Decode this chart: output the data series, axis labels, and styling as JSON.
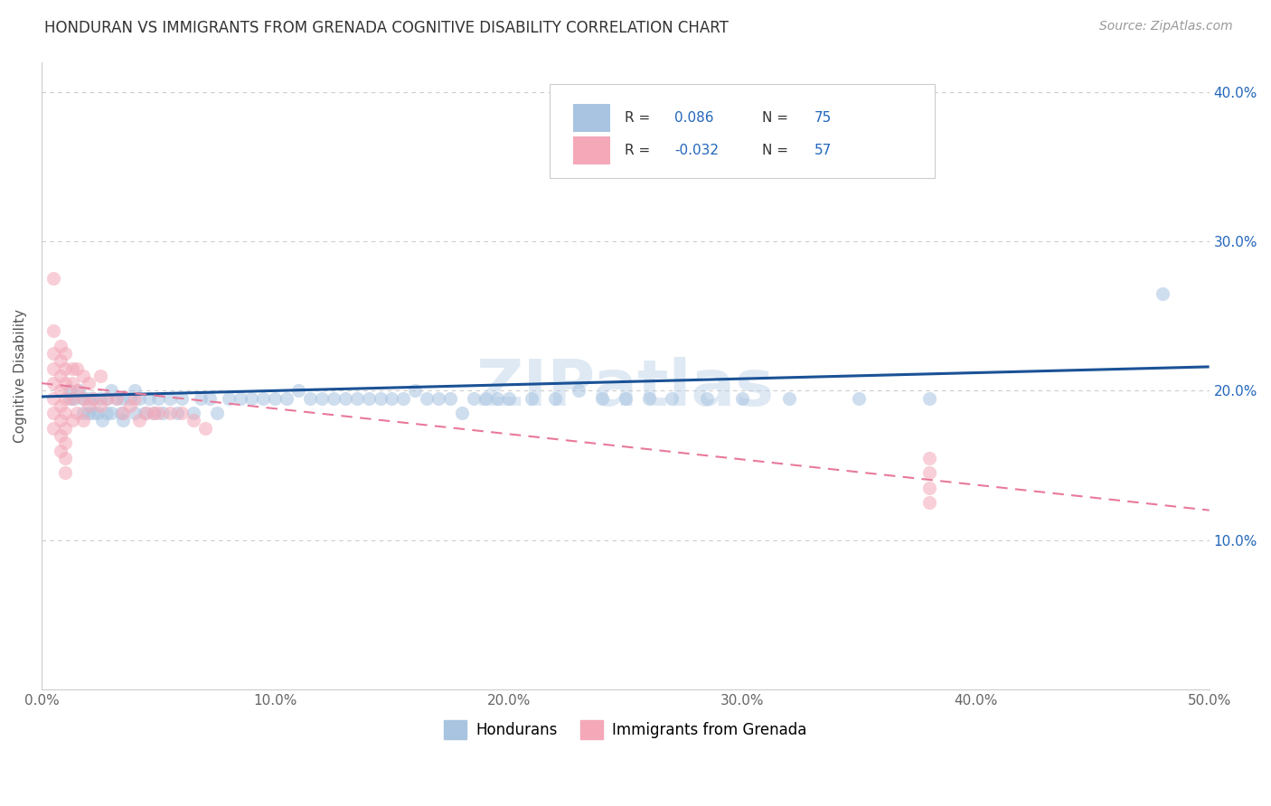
{
  "title": "HONDURAN VS IMMIGRANTS FROM GRENADA COGNITIVE DISABILITY CORRELATION CHART",
  "source": "Source: ZipAtlas.com",
  "ylabel": "Cognitive Disability",
  "xlim": [
    0.0,
    0.5
  ],
  "ylim": [
    0.0,
    0.42
  ],
  "xticks": [
    0.0,
    0.1,
    0.2,
    0.3,
    0.4,
    0.5
  ],
  "yticks": [
    0.0,
    0.1,
    0.2,
    0.3,
    0.4
  ],
  "ytick_labels_right": [
    "",
    "10.0%",
    "20.0%",
    "30.0%",
    "40.0%"
  ],
  "xtick_labels": [
    "0.0%",
    "10.0%",
    "20.0%",
    "30.0%",
    "40.0%",
    "50.0%"
  ],
  "watermark": "ZIPatlas",
  "blue_line_color": "#1a5296",
  "pink_line_color": "#e8799a",
  "grid_color": "#cccccc",
  "background_color": "#ffffff",
  "scatter_alpha": 0.55,
  "scatter_size": 120,
  "blue_scatter_x": [
    0.012,
    0.012,
    0.014,
    0.016,
    0.018,
    0.018,
    0.02,
    0.02,
    0.022,
    0.022,
    0.024,
    0.025,
    0.026,
    0.028,
    0.028,
    0.03,
    0.03,
    0.032,
    0.034,
    0.035,
    0.035,
    0.038,
    0.04,
    0.04,
    0.042,
    0.044,
    0.046,
    0.048,
    0.05,
    0.052,
    0.055,
    0.058,
    0.06,
    0.065,
    0.068,
    0.072,
    0.075,
    0.08,
    0.085,
    0.09,
    0.095,
    0.1,
    0.105,
    0.11,
    0.115,
    0.12,
    0.125,
    0.13,
    0.135,
    0.14,
    0.145,
    0.15,
    0.155,
    0.16,
    0.165,
    0.17,
    0.175,
    0.18,
    0.185,
    0.19,
    0.195,
    0.2,
    0.21,
    0.22,
    0.23,
    0.24,
    0.25,
    0.26,
    0.27,
    0.285,
    0.3,
    0.32,
    0.35,
    0.38,
    0.48
  ],
  "blue_scatter_y": [
    0.2,
    0.195,
    0.195,
    0.2,
    0.195,
    0.185,
    0.195,
    0.185,
    0.195,
    0.185,
    0.185,
    0.195,
    0.18,
    0.195,
    0.185,
    0.2,
    0.185,
    0.195,
    0.185,
    0.195,
    0.18,
    0.195,
    0.2,
    0.185,
    0.195,
    0.185,
    0.195,
    0.185,
    0.195,
    0.185,
    0.195,
    0.185,
    0.195,
    0.185,
    0.195,
    0.195,
    0.185,
    0.195,
    0.195,
    0.195,
    0.195,
    0.195,
    0.195,
    0.2,
    0.195,
    0.195,
    0.195,
    0.195,
    0.195,
    0.195,
    0.195,
    0.195,
    0.195,
    0.2,
    0.195,
    0.195,
    0.195,
    0.185,
    0.195,
    0.195,
    0.195,
    0.195,
    0.195,
    0.195,
    0.2,
    0.195,
    0.195,
    0.195,
    0.195,
    0.195,
    0.195,
    0.195,
    0.195,
    0.195,
    0.265
  ],
  "pink_scatter_x": [
    0.005,
    0.005,
    0.005,
    0.005,
    0.005,
    0.005,
    0.005,
    0.005,
    0.008,
    0.008,
    0.008,
    0.008,
    0.008,
    0.008,
    0.008,
    0.008,
    0.01,
    0.01,
    0.01,
    0.01,
    0.01,
    0.01,
    0.01,
    0.01,
    0.01,
    0.013,
    0.013,
    0.013,
    0.013,
    0.015,
    0.015,
    0.015,
    0.018,
    0.018,
    0.018,
    0.02,
    0.02,
    0.022,
    0.025,
    0.025,
    0.028,
    0.032,
    0.035,
    0.038,
    0.04,
    0.042,
    0.045,
    0.048,
    0.05,
    0.055,
    0.06,
    0.065,
    0.07,
    0.38,
    0.38,
    0.38,
    0.38
  ],
  "pink_scatter_y": [
    0.275,
    0.24,
    0.225,
    0.215,
    0.205,
    0.195,
    0.185,
    0.175,
    0.23,
    0.22,
    0.21,
    0.2,
    0.19,
    0.18,
    0.17,
    0.16,
    0.225,
    0.215,
    0.205,
    0.195,
    0.185,
    0.175,
    0.165,
    0.155,
    0.145,
    0.215,
    0.205,
    0.195,
    0.18,
    0.215,
    0.2,
    0.185,
    0.21,
    0.195,
    0.18,
    0.205,
    0.19,
    0.195,
    0.21,
    0.19,
    0.195,
    0.195,
    0.185,
    0.19,
    0.195,
    0.18,
    0.185,
    0.185,
    0.185,
    0.185,
    0.185,
    0.18,
    0.175,
    0.155,
    0.145,
    0.135,
    0.125
  ],
  "blue_line_x": [
    0.0,
    0.5
  ],
  "blue_line_y": [
    0.196,
    0.216
  ],
  "pink_line_x": [
    0.0,
    0.5
  ],
  "pink_line_y": [
    0.205,
    0.12
  ]
}
